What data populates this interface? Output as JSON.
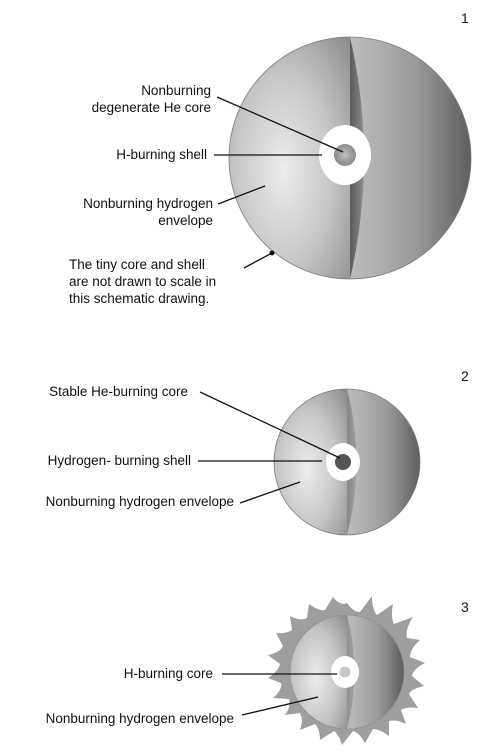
{
  "panels": [
    {
      "number": "1",
      "labels": {
        "core_line1": "Nonburning",
        "core_line2": "degenerate He core",
        "shell": "H-burning shell",
        "envelope_line1": "Nonburning hydrogen",
        "envelope_line2": "envelope",
        "note_line1": "The tiny core and shell",
        "note_line2": "are not drawn to scale in",
        "note_line3": "this schematic drawing."
      }
    },
    {
      "number": "2",
      "labels": {
        "core": "Stable He-burning core",
        "shell": "Hydrogen- burning shell",
        "envelope": "Nonburning hydrogen envelope"
      }
    },
    {
      "number": "3",
      "labels": {
        "core": "H-burning core",
        "envelope": "Nonburning hydrogen envelope"
      }
    }
  ],
  "colors": {
    "sphere_light": "#e6e6e6",
    "sphere_mid": "#a8a8a8",
    "sphere_dark": "#555555",
    "core_grey": "#9a9a9a",
    "core_dark": "#555555",
    "line": "#111111"
  }
}
